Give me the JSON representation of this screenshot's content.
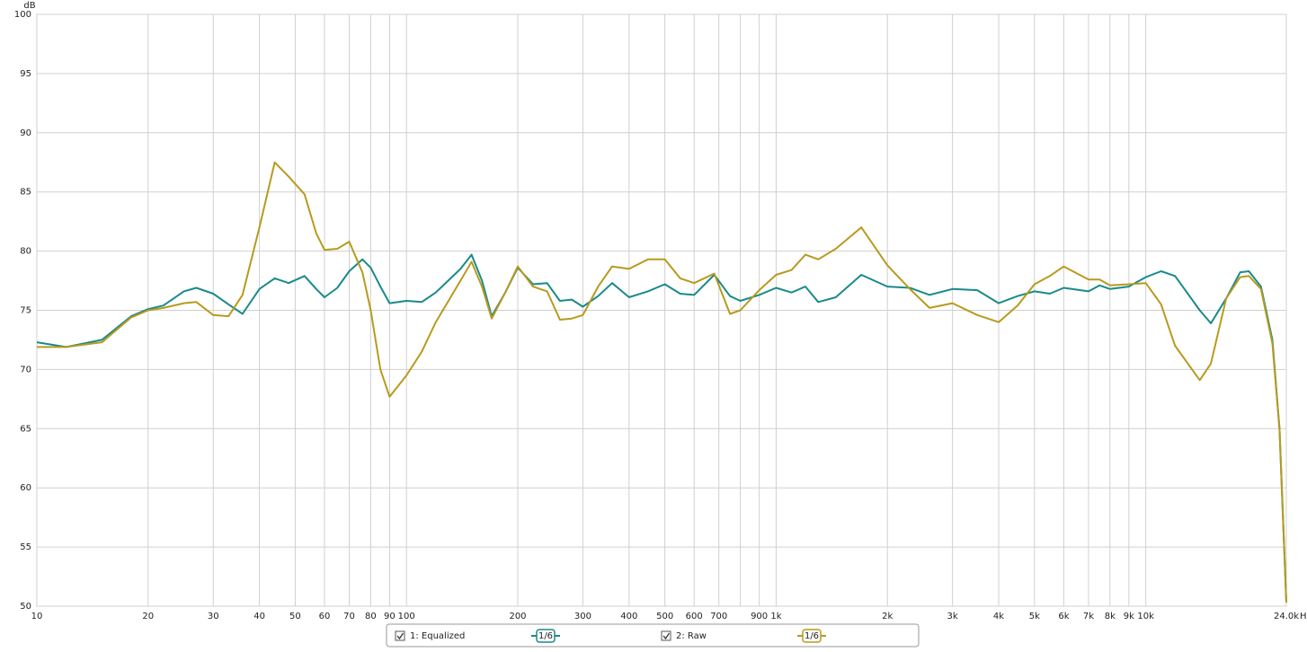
{
  "chart_data": {
    "type": "line",
    "ylabel": "dB",
    "xlabel": "Hz",
    "log_x": true,
    "grid": true,
    "xlim": [
      10,
      24000
    ],
    "ylim": [
      50,
      100
    ],
    "yticks": [
      50,
      55,
      60,
      65,
      70,
      75,
      80,
      85,
      90,
      95,
      100
    ],
    "xticks": [
      10,
      20,
      30,
      40,
      50,
      60,
      70,
      80,
      90,
      100,
      200,
      300,
      400,
      500,
      600,
      700,
      {
        "value": 800,
        "label": null
      },
      900,
      {
        "value": 1000,
        "label": "1k"
      },
      {
        "value": 2000,
        "label": "2k"
      },
      {
        "value": 3000,
        "label": "3k"
      },
      {
        "value": 4000,
        "label": "4k"
      },
      {
        "value": 5000,
        "label": "5k"
      },
      {
        "value": 6000,
        "label": "6k"
      },
      {
        "value": 7000,
        "label": "7k"
      },
      {
        "value": 8000,
        "label": "8k"
      },
      {
        "value": 9000,
        "label": "9k"
      },
      {
        "value": 10000,
        "label": "10k"
      },
      {
        "value": 24000,
        "label": "24.0k"
      }
    ],
    "x": [
      10,
      12,
      15,
      18,
      20,
      22,
      25,
      27,
      30,
      33,
      36,
      40,
      44,
      48,
      53,
      57,
      60,
      65,
      70,
      76,
      80,
      85,
      90,
      100,
      110,
      120,
      140,
      150,
      160,
      170,
      185,
      200,
      220,
      240,
      260,
      280,
      300,
      330,
      360,
      400,
      450,
      500,
      550,
      600,
      680,
      750,
      800,
      900,
      1000,
      1100,
      1200,
      1300,
      1450,
      1700,
      2000,
      2300,
      2600,
      3000,
      3500,
      4000,
      4500,
      5000,
      5500,
      6000,
      7000,
      7500,
      8000,
      9000,
      10000,
      11000,
      12000,
      14000,
      15000,
      16500,
      18000,
      19000,
      20500,
      22000,
      23000,
      24000
    ],
    "series": [
      {
        "name": "1: Equalized",
        "color": "#1a8a8a",
        "smoothing": "1/6",
        "values": [
          72.3,
          71.9,
          72.5,
          74.5,
          75.1,
          75.4,
          76.6,
          76.9,
          76.4,
          75.5,
          74.7,
          76.8,
          77.7,
          77.3,
          77.9,
          76.8,
          76.1,
          76.9,
          78.3,
          79.3,
          78.6,
          77.0,
          75.6,
          75.8,
          75.7,
          76.5,
          78.5,
          79.7,
          77.5,
          74.5,
          76.5,
          78.6,
          77.2,
          77.3,
          75.8,
          75.9,
          75.3,
          76.2,
          77.3,
          76.1,
          76.6,
          77.2,
          76.4,
          76.3,
          78.0,
          76.2,
          75.8,
          76.3,
          76.9,
          76.5,
          77.0,
          75.7,
          76.1,
          78.0,
          77.0,
          76.9,
          76.3,
          76.8,
          76.7,
          75.6,
          76.2,
          76.6,
          76.4,
          76.9,
          76.6,
          77.1,
          76.8,
          77.0,
          77.8,
          78.3,
          77.9,
          75.0,
          73.9,
          76.0,
          78.2,
          78.3,
          77.0,
          72.5,
          65,
          50.3
        ]
      },
      {
        "name": "2: Raw",
        "color": "#b89a1e",
        "smoothing": "1/6",
        "values": [
          71.9,
          71.9,
          72.3,
          74.4,
          75.0,
          75.2,
          75.6,
          75.7,
          74.6,
          74.5,
          76.3,
          82,
          87.5,
          86.3,
          84.8,
          81.5,
          80.1,
          80.2,
          80.8,
          78.2,
          75,
          70,
          67.7,
          69.5,
          71.5,
          74,
          77.5,
          79.1,
          77.0,
          74.3,
          76.5,
          78.7,
          77.0,
          76.6,
          74.2,
          74.3,
          74.6,
          77,
          78.7,
          78.5,
          79.3,
          79.3,
          77.7,
          77.3,
          78.1,
          74.7,
          75,
          76.7,
          78.0,
          78.4,
          79.7,
          79.3,
          80.2,
          82.0,
          78.8,
          76.8,
          75.2,
          75.6,
          74.6,
          74.0,
          75.4,
          77.2,
          77.9,
          78.7,
          77.6,
          77.6,
          77.1,
          77.2,
          77.3,
          75.5,
          72,
          69.1,
          70.5,
          76.0,
          77.8,
          77.9,
          76.8,
          72.2,
          65,
          50.3
        ]
      }
    ]
  }
}
